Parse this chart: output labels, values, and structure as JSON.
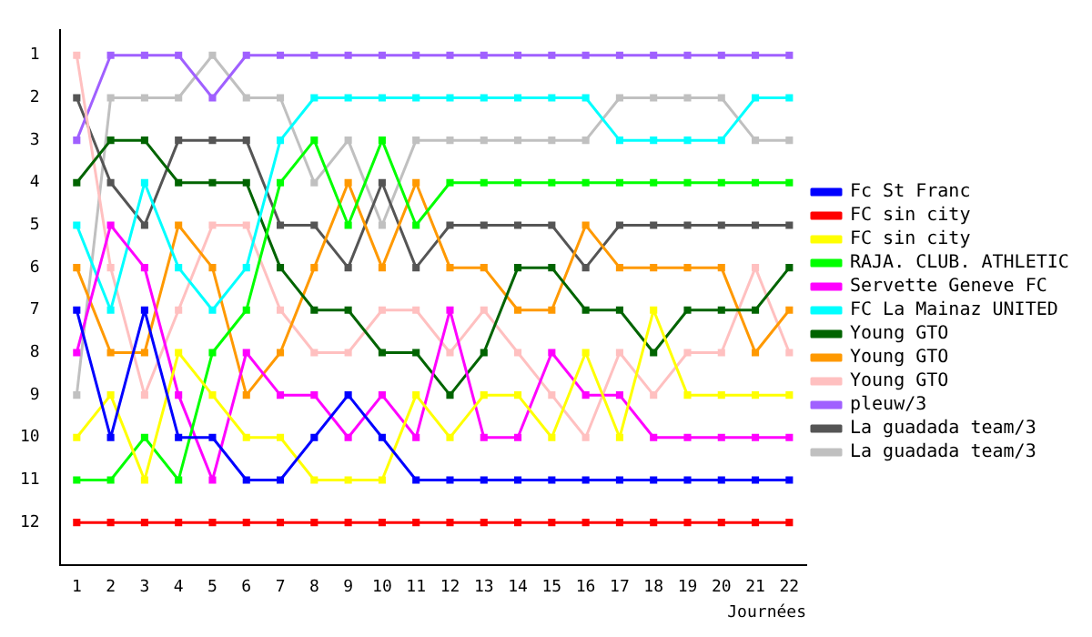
{
  "chart_data": {
    "type": "line",
    "xlabel": "Journées",
    "x": [
      1,
      2,
      3,
      4,
      5,
      6,
      7,
      8,
      9,
      10,
      11,
      12,
      13,
      14,
      15,
      16,
      17,
      18,
      19,
      20,
      21,
      22
    ],
    "xlim": [
      0.5,
      22.5
    ],
    "xticks": [
      1,
      2,
      3,
      4,
      5,
      6,
      7,
      8,
      9,
      10,
      11,
      12,
      13,
      14,
      15,
      16,
      17,
      18,
      19,
      20,
      21,
      22
    ],
    "ylim": [
      13,
      0.4
    ],
    "yticks": [
      1,
      2,
      3,
      4,
      5,
      6,
      7,
      8,
      9,
      10,
      11,
      12
    ],
    "grid": false,
    "legend": "right",
    "marker": "square",
    "line_style": "solid",
    "series": [
      {
        "name": "Fc St Franc",
        "color": "#0000ff",
        "values": [
          7,
          10,
          7,
          10,
          10,
          11,
          11,
          10,
          9,
          10,
          11,
          11,
          11,
          11,
          11,
          11,
          11,
          11,
          11,
          11,
          11,
          11
        ]
      },
      {
        "name": "FC sin city",
        "color": "#ff0000",
        "values": [
          12,
          12,
          12,
          12,
          12,
          12,
          12,
          12,
          12,
          12,
          12,
          12,
          12,
          12,
          12,
          12,
          12,
          12,
          12,
          12,
          12,
          12
        ]
      },
      {
        "name": "FC sin city",
        "color": "#ffff00",
        "values": [
          10,
          9,
          11,
          8,
          9,
          10,
          10,
          11,
          11,
          11,
          9,
          10,
          9,
          9,
          10,
          8,
          10,
          7,
          9,
          9,
          9,
          9
        ]
      },
      {
        "name": "RAJA. CLUB. ATHLETIC",
        "color": "#00ff00",
        "values": [
          11,
          11,
          10,
          11,
          8,
          7,
          4,
          3,
          5,
          3,
          5,
          4,
          4,
          4,
          4,
          4,
          4,
          4,
          4,
          4,
          4,
          4
        ]
      },
      {
        "name": "Servette Geneve FC",
        "color": "#ff00ff",
        "values": [
          8,
          5,
          6,
          9,
          11,
          8,
          9,
          9,
          10,
          9,
          10,
          7,
          10,
          10,
          8,
          9,
          9,
          10,
          10,
          10,
          10,
          10
        ]
      },
      {
        "name": "FC La Mainaz UNITED",
        "color": "#00ffff",
        "values": [
          5,
          7,
          4,
          6,
          7,
          6,
          3,
          2,
          2,
          2,
          2,
          2,
          2,
          2,
          2,
          2,
          3,
          3,
          3,
          3,
          2,
          2
        ]
      },
      {
        "name": "Young GTO",
        "color": "#006400",
        "values": [
          4,
          3,
          3,
          4,
          4,
          4,
          6,
          7,
          7,
          8,
          8,
          9,
          8,
          6,
          6,
          7,
          7,
          8,
          7,
          7,
          7,
          6
        ]
      },
      {
        "name": "Young GTO",
        "color": "#ff9900",
        "values": [
          6,
          8,
          8,
          5,
          6,
          9,
          8,
          6,
          4,
          6,
          4,
          6,
          6,
          7,
          7,
          5,
          6,
          6,
          6,
          6,
          8,
          7
        ]
      },
      {
        "name": "Young GTO",
        "color": "#ffc0c0",
        "values": [
          1,
          6,
          9,
          7,
          5,
          5,
          7,
          8,
          8,
          7,
          7,
          8,
          7,
          8,
          9,
          10,
          8,
          9,
          8,
          8,
          6,
          8
        ]
      },
      {
        "name": "pleuw/3",
        "color": "#a060ff",
        "values": [
          3,
          1,
          1,
          1,
          2,
          1,
          1,
          1,
          1,
          1,
          1,
          1,
          1,
          1,
          1,
          1,
          1,
          1,
          1,
          1,
          1,
          1
        ]
      },
      {
        "name": "La guadada team/3",
        "color": "#555555",
        "values": [
          2,
          4,
          5,
          3,
          3,
          3,
          5,
          5,
          6,
          4,
          6,
          5,
          5,
          5,
          5,
          6,
          5,
          5,
          5,
          5,
          5,
          5
        ]
      },
      {
        "name": "La guadada team/3",
        "color": "#c0c0c0",
        "values": [
          9,
          2,
          2,
          2,
          1,
          2,
          2,
          4,
          3,
          5,
          3,
          3,
          3,
          3,
          3,
          3,
          2,
          2,
          2,
          2,
          3,
          3
        ]
      }
    ]
  }
}
